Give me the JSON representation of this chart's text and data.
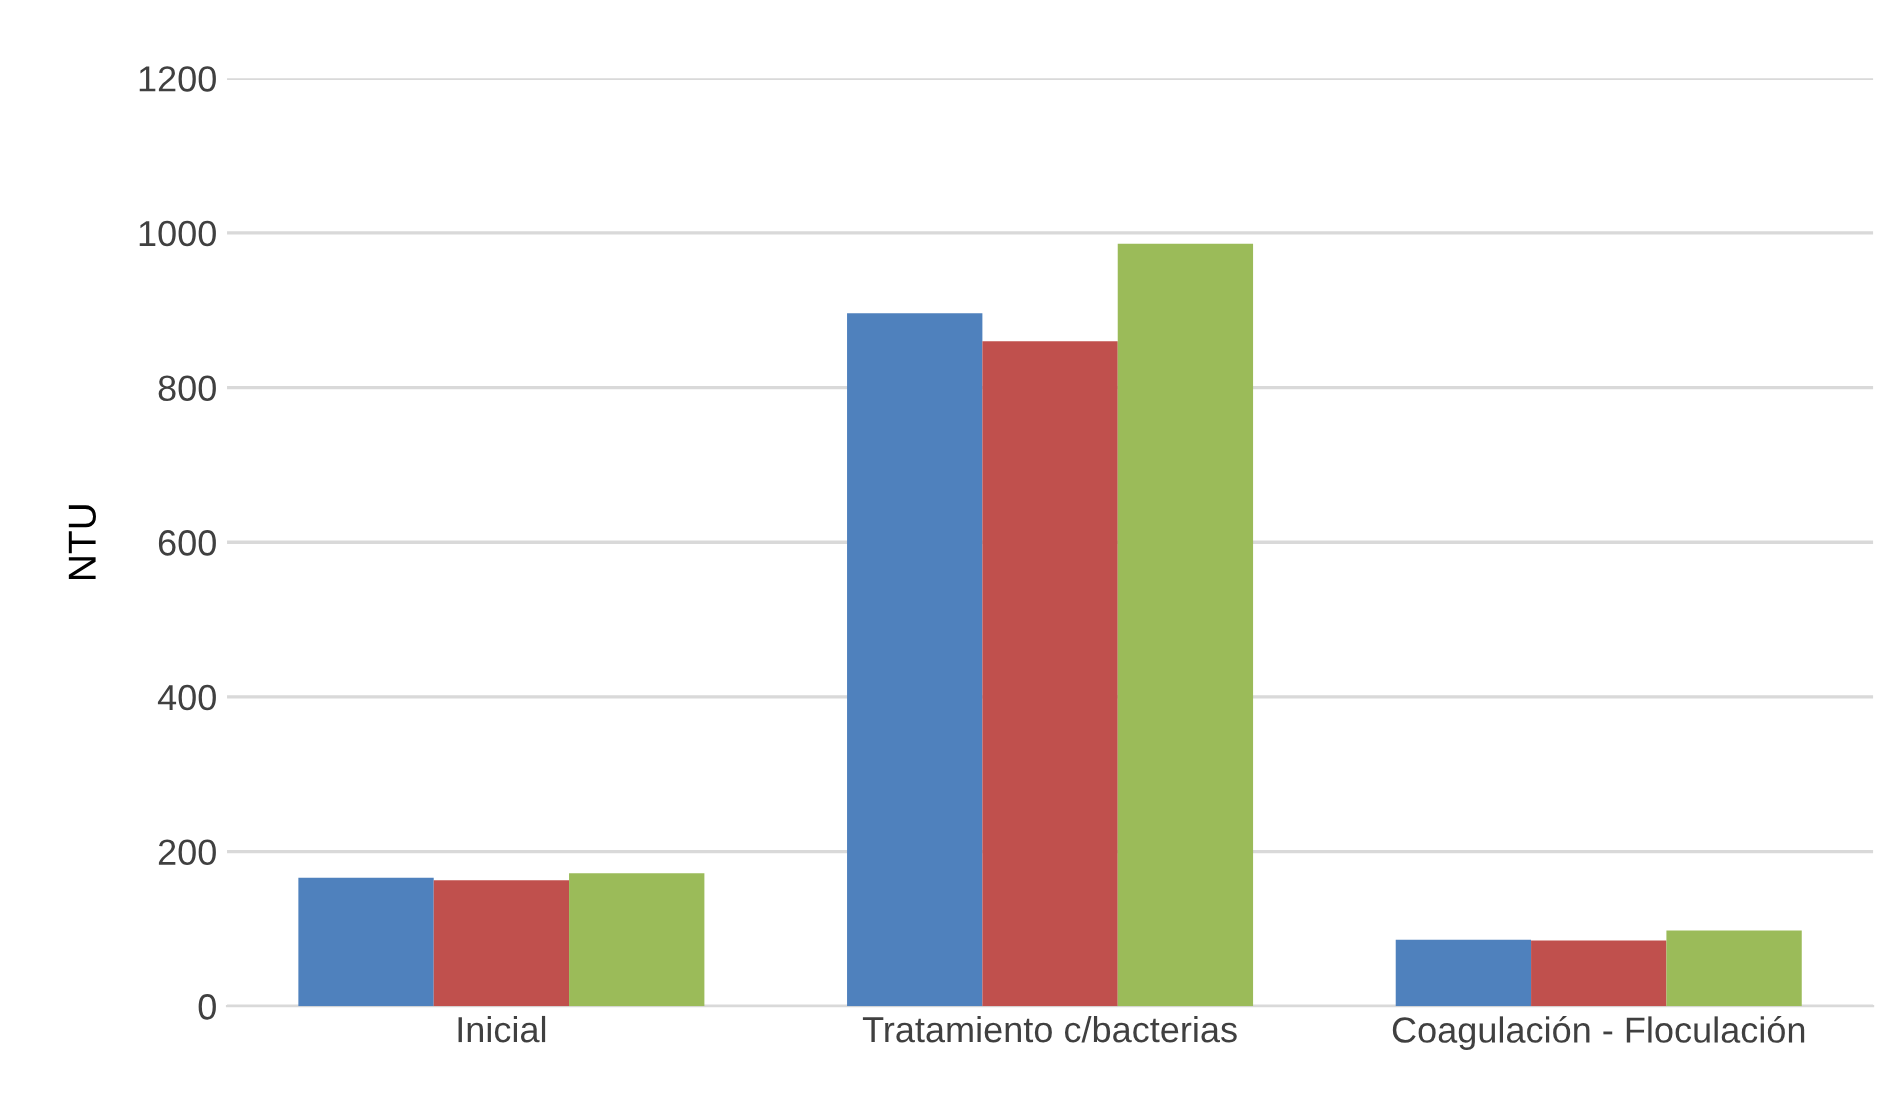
{
  "chart_data": {
    "type": "bar",
    "ylabel": "NTU",
    "categories": [
      "Inicial",
      "Tratamiento c/bacterias",
      "Coagulación - Floculación"
    ],
    "series": [
      {
        "color": "#4f81bd",
        "values": [
          166,
          896,
          86
        ]
      },
      {
        "color": "#c0504d",
        "values": [
          163,
          860,
          85
        ]
      },
      {
        "color": "#9bbb59",
        "values": [
          172,
          986,
          98
        ]
      }
    ],
    "ylim": [
      0,
      1200
    ],
    "yticks": [
      0,
      200,
      400,
      600,
      800,
      1000,
      1200
    ],
    "grid": "y",
    "legend": false
  }
}
